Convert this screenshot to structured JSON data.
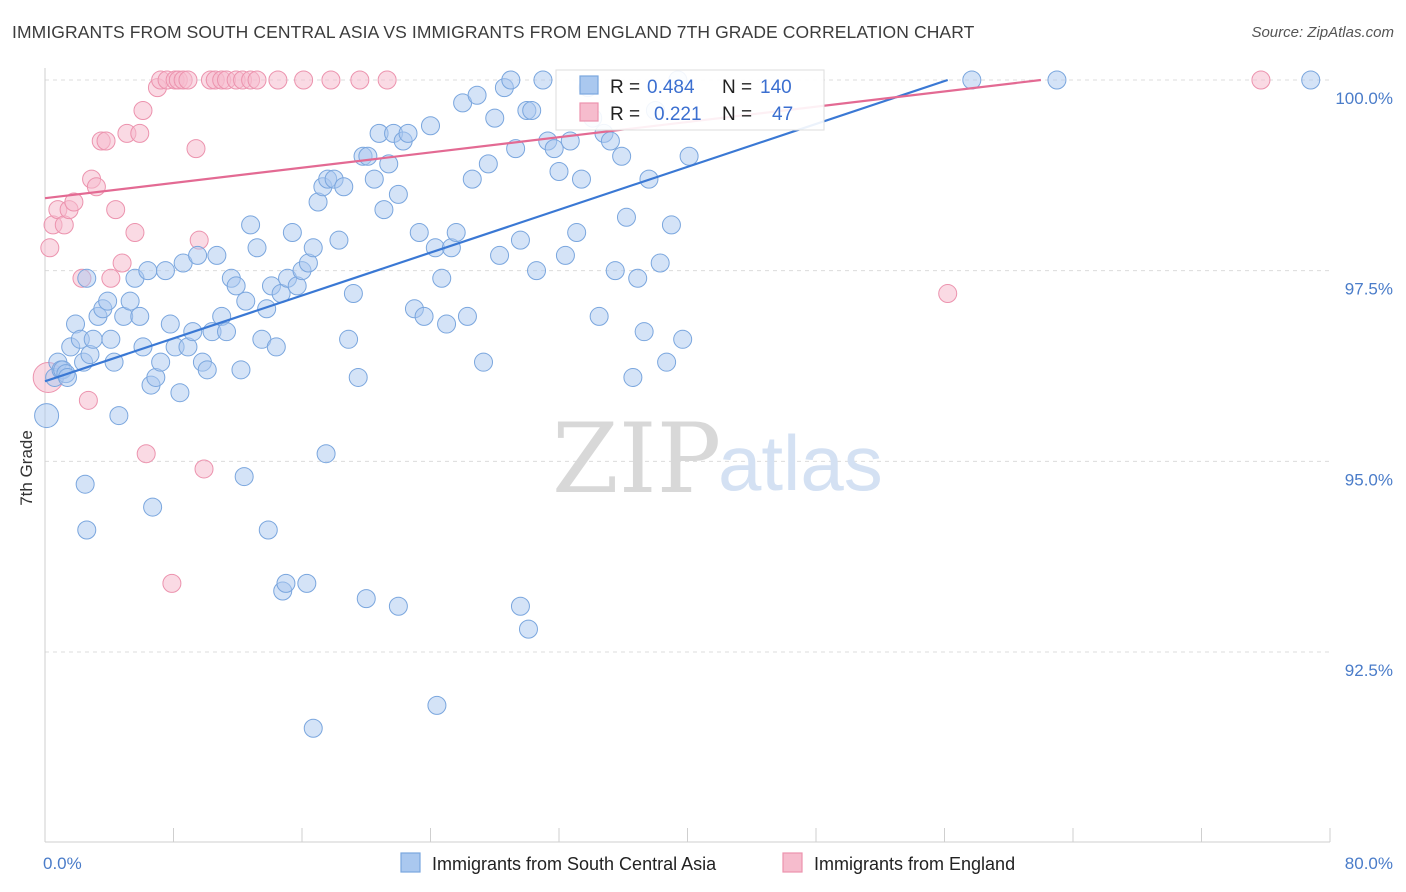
{
  "title": "IMMIGRANTS FROM SOUTH CENTRAL ASIA VS IMMIGRANTS FROM ENGLAND 7TH GRADE CORRELATION CHART",
  "source": "Source: ZipAtlas.com",
  "watermark": {
    "zip": "ZIP",
    "atlas": "atlas"
  },
  "colors": {
    "blue_fill": "#aac8ef",
    "blue_stroke": "#7aa6de",
    "blue_line": "#3a78d4",
    "pink_fill": "#f6bccd",
    "pink_stroke": "#ec93ae",
    "pink_line": "#e36a93",
    "tick_label": "#4a7cc9"
  },
  "legend": {
    "blue": {
      "r_label": "R =",
      "r_value": "0.484",
      "n_label": "N =",
      "n_value": "140"
    },
    "pink": {
      "r_label": "R =",
      "r_value": "0.221",
      "n_label": "N =",
      "n_value": "47"
    }
  },
  "chart_data": {
    "type": "scatter",
    "title": "",
    "xlabel": "",
    "ylabel": "7th Grade",
    "xlim": [
      0,
      80
    ],
    "ylim": [
      90.0,
      100.45
    ],
    "x_tick_labels": [
      {
        "value": 0,
        "label": "0.0%"
      },
      {
        "value": 80,
        "label": "80.0%"
      }
    ],
    "y_tick_labels": [
      {
        "value": 100.0,
        "label": "100.0%"
      },
      {
        "value": 97.5,
        "label": "97.5%"
      },
      {
        "value": 95.0,
        "label": "95.0%"
      },
      {
        "value": 92.5,
        "label": "92.5%"
      }
    ],
    "grid": "horizontal-dashed",
    "series": [
      {
        "name": "Immigrants from South Central Asia",
        "color": "#aac8ef",
        "trend": [
          [
            0,
            96.05
          ],
          [
            56.2,
            100.0
          ]
        ],
        "points": [
          [
            0.1,
            95.6
          ],
          [
            0.6,
            96.1
          ],
          [
            0.8,
            96.3
          ],
          [
            1.0,
            96.2
          ],
          [
            1.1,
            96.2
          ],
          [
            1.3,
            96.15
          ],
          [
            1.4,
            96.1
          ],
          [
            1.6,
            96.5
          ],
          [
            1.9,
            96.8
          ],
          [
            2.2,
            96.6
          ],
          [
            2.4,
            96.3
          ],
          [
            2.6,
            97.4
          ],
          [
            2.8,
            96.4
          ],
          [
            3.0,
            96.6
          ],
          [
            3.3,
            96.9
          ],
          [
            3.6,
            97.0
          ],
          [
            3.9,
            97.1
          ],
          [
            4.1,
            96.6
          ],
          [
            4.3,
            96.3
          ],
          [
            4.6,
            95.6
          ],
          [
            4.9,
            96.9
          ],
          [
            5.3,
            97.1
          ],
          [
            5.6,
            97.4
          ],
          [
            5.9,
            96.9
          ],
          [
            6.1,
            96.5
          ],
          [
            6.4,
            97.5
          ],
          [
            6.6,
            96.0
          ],
          [
            6.9,
            96.1
          ],
          [
            7.2,
            96.3
          ],
          [
            7.5,
            97.5
          ],
          [
            7.8,
            96.8
          ],
          [
            8.1,
            96.5
          ],
          [
            8.4,
            95.9
          ],
          [
            8.6,
            97.6
          ],
          [
            8.9,
            96.5
          ],
          [
            9.2,
            96.7
          ],
          [
            9.5,
            97.7
          ],
          [
            9.8,
            96.3
          ],
          [
            10.1,
            96.2
          ],
          [
            10.4,
            96.7
          ],
          [
            10.7,
            97.7
          ],
          [
            11.0,
            96.9
          ],
          [
            11.3,
            96.7
          ],
          [
            11.6,
            97.4
          ],
          [
            11.9,
            97.3
          ],
          [
            12.2,
            96.2
          ],
          [
            12.5,
            97.1
          ],
          [
            12.8,
            98.1
          ],
          [
            13.2,
            97.8
          ],
          [
            13.5,
            96.6
          ],
          [
            13.8,
            97.0
          ],
          [
            14.1,
            97.3
          ],
          [
            14.4,
            96.5
          ],
          [
            14.7,
            97.2
          ],
          [
            15.1,
            97.4
          ],
          [
            15.4,
            98.0
          ],
          [
            15.7,
            97.3
          ],
          [
            16.0,
            97.5
          ],
          [
            16.4,
            97.6
          ],
          [
            16.7,
            97.8
          ],
          [
            17.0,
            98.4
          ],
          [
            17.3,
            98.6
          ],
          [
            17.6,
            98.7
          ],
          [
            18.0,
            98.7
          ],
          [
            18.3,
            97.9
          ],
          [
            18.6,
            98.6
          ],
          [
            18.9,
            96.6
          ],
          [
            19.2,
            97.2
          ],
          [
            19.5,
            96.1
          ],
          [
            19.8,
            99.0
          ],
          [
            20.1,
            99.0
          ],
          [
            20.5,
            98.7
          ],
          [
            20.8,
            99.3
          ],
          [
            21.1,
            98.3
          ],
          [
            21.4,
            98.9
          ],
          [
            21.7,
            99.3
          ],
          [
            22.0,
            98.5
          ],
          [
            22.3,
            99.2
          ],
          [
            22.6,
            99.3
          ],
          [
            23.0,
            97.0
          ],
          [
            23.3,
            98.0
          ],
          [
            23.6,
            96.9
          ],
          [
            24.0,
            99.4
          ],
          [
            24.3,
            97.8
          ],
          [
            24.7,
            97.4
          ],
          [
            25.0,
            96.8
          ],
          [
            25.3,
            97.8
          ],
          [
            25.6,
            98.0
          ],
          [
            26.0,
            99.7
          ],
          [
            26.3,
            96.9
          ],
          [
            26.6,
            98.7
          ],
          [
            26.9,
            99.8
          ],
          [
            27.3,
            96.3
          ],
          [
            27.6,
            98.9
          ],
          [
            28.0,
            99.5
          ],
          [
            28.3,
            97.7
          ],
          [
            28.6,
            99.9
          ],
          [
            29.0,
            100.0
          ],
          [
            29.3,
            99.1
          ],
          [
            29.6,
            97.9
          ],
          [
            30.0,
            99.6
          ],
          [
            30.3,
            99.6
          ],
          [
            30.6,
            97.5
          ],
          [
            31.0,
            100.0
          ],
          [
            31.3,
            99.2
          ],
          [
            31.7,
            99.1
          ],
          [
            32.0,
            98.8
          ],
          [
            32.4,
            97.7
          ],
          [
            32.7,
            99.2
          ],
          [
            33.1,
            98.0
          ],
          [
            33.4,
            98.7
          ],
          [
            33.8,
            99.9
          ],
          [
            34.1,
            99.5
          ],
          [
            34.5,
            96.9
          ],
          [
            34.8,
            99.3
          ],
          [
            35.2,
            99.2
          ],
          [
            35.5,
            97.5
          ],
          [
            35.9,
            99.0
          ],
          [
            36.2,
            98.2
          ],
          [
            36.6,
            96.1
          ],
          [
            36.9,
            97.4
          ],
          [
            37.3,
            96.7
          ],
          [
            37.6,
            98.7
          ],
          [
            38.0,
            99.6
          ],
          [
            38.3,
            97.6
          ],
          [
            38.7,
            96.3
          ],
          [
            39.0,
            98.1
          ],
          [
            39.4,
            100.0
          ],
          [
            39.7,
            96.6
          ],
          [
            40.1,
            99.0
          ],
          [
            2.5,
            94.7
          ],
          [
            2.6,
            94.1
          ],
          [
            6.7,
            94.4
          ],
          [
            12.4,
            94.8
          ],
          [
            13.9,
            94.1
          ],
          [
            14.8,
            93.3
          ],
          [
            15.0,
            93.4
          ],
          [
            16.3,
            93.4
          ],
          [
            17.5,
            95.1
          ],
          [
            20.0,
            93.2
          ],
          [
            22.0,
            93.1
          ],
          [
            29.6,
            93.1
          ],
          [
            30.1,
            92.8
          ],
          [
            24.4,
            91.8
          ],
          [
            16.7,
            91.5
          ],
          [
            57.7,
            100.0
          ],
          [
            63.0,
            100.0
          ],
          [
            78.8,
            100.0
          ]
        ]
      },
      {
        "name": "Immigrants from England",
        "color": "#f6bccd",
        "trend": [
          [
            0,
            98.45
          ],
          [
            62.0,
            100.0
          ]
        ],
        "points": [
          [
            0.2,
            96.1
          ],
          [
            0.3,
            97.8
          ],
          [
            0.5,
            98.1
          ],
          [
            0.8,
            98.3
          ],
          [
            1.2,
            98.1
          ],
          [
            1.5,
            98.3
          ],
          [
            1.8,
            98.4
          ],
          [
            2.3,
            97.4
          ],
          [
            2.7,
            95.8
          ],
          [
            2.9,
            98.7
          ],
          [
            3.2,
            98.6
          ],
          [
            3.5,
            99.2
          ],
          [
            3.8,
            99.2
          ],
          [
            4.1,
            97.4
          ],
          [
            4.4,
            98.3
          ],
          [
            4.8,
            97.6
          ],
          [
            5.1,
            99.3
          ],
          [
            5.6,
            98.0
          ],
          [
            5.9,
            99.3
          ],
          [
            6.1,
            99.6
          ],
          [
            6.3,
            95.1
          ],
          [
            7.0,
            99.9
          ],
          [
            7.2,
            100.0
          ],
          [
            7.6,
            100.0
          ],
          [
            7.9,
            93.4
          ],
          [
            8.1,
            100.0
          ],
          [
            8.3,
            100.0
          ],
          [
            8.6,
            100.0
          ],
          [
            8.9,
            100.0
          ],
          [
            9.4,
            99.1
          ],
          [
            9.6,
            97.9
          ],
          [
            9.9,
            94.9
          ],
          [
            10.3,
            100.0
          ],
          [
            10.6,
            100.0
          ],
          [
            11.0,
            100.0
          ],
          [
            11.3,
            100.0
          ],
          [
            11.9,
            100.0
          ],
          [
            12.3,
            100.0
          ],
          [
            12.8,
            100.0
          ],
          [
            13.2,
            100.0
          ],
          [
            14.5,
            100.0
          ],
          [
            16.1,
            100.0
          ],
          [
            17.8,
            100.0
          ],
          [
            19.6,
            100.0
          ],
          [
            21.3,
            100.0
          ],
          [
            56.2,
            97.2
          ],
          [
            75.7,
            100.0
          ]
        ]
      }
    ]
  },
  "bottom_legend": {
    "blue_label": "Immigrants from South Central Asia",
    "pink_label": "Immigrants from England"
  }
}
